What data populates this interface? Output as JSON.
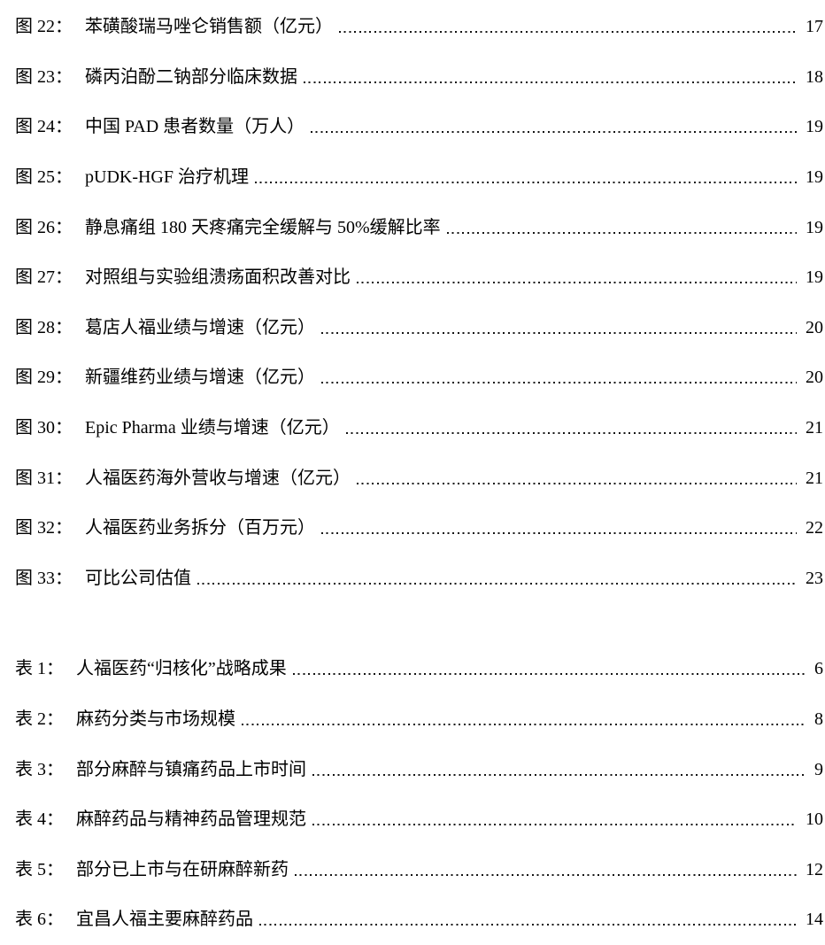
{
  "toc": {
    "figures": [
      {
        "label": "图 22：",
        "title": "苯磺酸瑞马唑仑销售额（亿元）",
        "page": "17"
      },
      {
        "label": "图 23：",
        "title": "磷丙泊酚二钠部分临床数据",
        "page": "18"
      },
      {
        "label": "图 24：",
        "title": "中国 PAD 患者数量（万人）",
        "page": "19"
      },
      {
        "label": "图 25：",
        "title": "pUDK-HGF 治疗机理",
        "page": "19"
      },
      {
        "label": "图 26：",
        "title": "静息痛组 180 天疼痛完全缓解与 50%缓解比率",
        "page": "19"
      },
      {
        "label": "图 27：",
        "title": "对照组与实验组溃疡面积改善对比",
        "page": "19"
      },
      {
        "label": "图 28：",
        "title": "葛店人福业绩与增速（亿元）",
        "page": "20"
      },
      {
        "label": "图 29：",
        "title": "新疆维药业绩与增速（亿元）",
        "page": "20"
      },
      {
        "label": "图 30：",
        "title": "Epic Pharma 业绩与增速（亿元）",
        "page": "21"
      },
      {
        "label": "图 31：",
        "title": "人福医药海外营收与增速（亿元）",
        "page": "21"
      },
      {
        "label": "图 32：",
        "title": "人福医药业务拆分（百万元）",
        "page": "22"
      },
      {
        "label": "图 33：",
        "title": "可比公司估值",
        "page": "23"
      }
    ],
    "tables": [
      {
        "label": "表 1：",
        "title": "人福医药“归核化”战略成果",
        "page": "6"
      },
      {
        "label": "表 2：",
        "title": "麻药分类与市场规模",
        "page": "8"
      },
      {
        "label": "表 3：",
        "title": "部分麻醉与镇痛药品上市时间",
        "page": "9"
      },
      {
        "label": "表 4：",
        "title": "麻醉药品与精神药品管理规范",
        "page": "10"
      },
      {
        "label": "表 5：",
        "title": "部分已上市与在研麻醉新药",
        "page": "12"
      },
      {
        "label": "表 6：",
        "title": "宜昌人福主要麻醉药品",
        "page": "14"
      }
    ]
  }
}
